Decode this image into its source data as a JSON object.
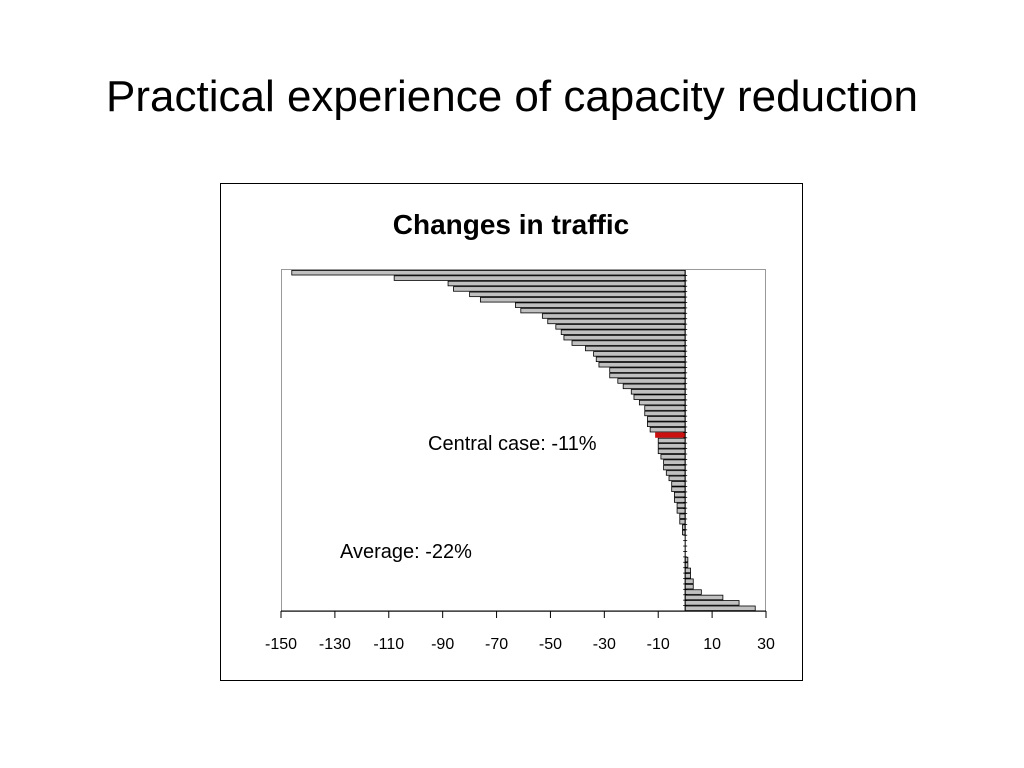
{
  "slide": {
    "title": "Practical experience of capacity reduction"
  },
  "chart_data": {
    "type": "bar",
    "orientation": "horizontal",
    "title": "Changes in traffic",
    "xlabel": "",
    "ylabel": "",
    "xlim": [
      -150,
      30
    ],
    "xticks": [
      -150,
      -130,
      -110,
      -90,
      -70,
      -50,
      -30,
      -10,
      10,
      30
    ],
    "grid": false,
    "values": [
      -146,
      -108,
      -88,
      -86,
      -80,
      -76,
      -63,
      -61,
      -53,
      -51,
      -48,
      -46,
      -45,
      -42,
      -37,
      -34,
      -33,
      -32,
      -28,
      -28,
      -25,
      -23,
      -20,
      -19,
      -17,
      -15,
      -15,
      -14,
      -14,
      -13,
      -11,
      -10,
      -10,
      -10,
      -9,
      -8,
      -8,
      -7,
      -6,
      -5,
      -5,
      -4,
      -4,
      -3,
      -3,
      -2,
      -2,
      -1,
      -1,
      0,
      0,
      0,
      0,
      1,
      1,
      2,
      2,
      3,
      3,
      6,
      14,
      20,
      26
    ],
    "highlight_index": 30,
    "bar_color": "#c0c0c0",
    "highlight_color": "#cc1111",
    "annotations": [
      {
        "text": "Central case: -11%"
      },
      {
        "text": "Average: -22%"
      }
    ]
  }
}
